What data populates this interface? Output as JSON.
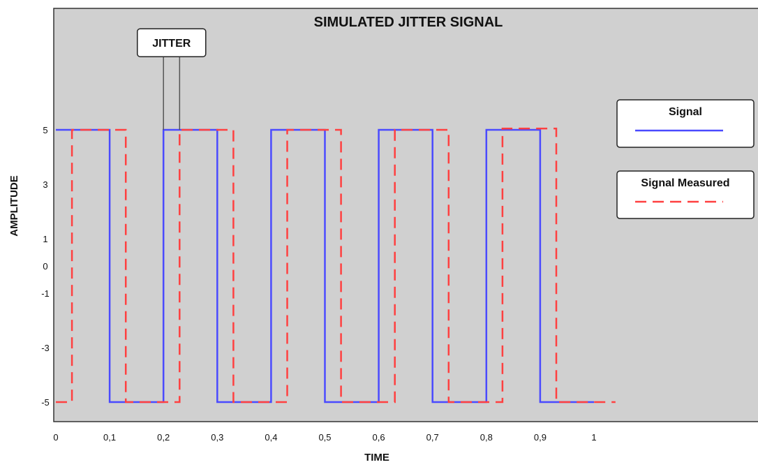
{
  "chart_data": {
    "type": "line",
    "title": "SIMULATED JITTER SIGNAL",
    "xlabel": "TIME",
    "ylabel": "AMPLITUDE",
    "xlim": [
      0,
      1.3
    ],
    "ylim": [
      -5.7,
      9.5
    ],
    "x_ticks": [
      0,
      0.1,
      0.2,
      0.3,
      0.4,
      0.5,
      0.6,
      0.7,
      0.8,
      0.9,
      1
    ],
    "x_tick_labels": [
      "0",
      "0,1",
      "0,2",
      "0,3",
      "0,4",
      "0,5",
      "0,6",
      "0,7",
      "0,8",
      "0,9",
      "1"
    ],
    "y_ticks": [
      5,
      3,
      1,
      0,
      -1,
      -3,
      -5
    ],
    "y_tick_labels": [
      "5",
      "3",
      "1",
      "0",
      "-1",
      "-3",
      "-5"
    ],
    "grid": false,
    "background": "#d0d0d0",
    "legend_position": "right",
    "series": [
      {
        "name": "Signal",
        "color": "#4a4aff",
        "line_style": "solid",
        "x": [
          0,
          0.1,
          0.1,
          0.2,
          0.2,
          0.3,
          0.3,
          0.4,
          0.4,
          0.5,
          0.5,
          0.6,
          0.6,
          0.7,
          0.7,
          0.8,
          0.8,
          0.9,
          0.9,
          1.0
        ],
        "y": [
          5,
          5,
          -5,
          -5,
          5,
          5,
          -5,
          -5,
          5,
          5,
          -5,
          -5,
          5,
          5,
          -5,
          -5,
          5,
          5,
          -5,
          -5
        ]
      },
      {
        "name": "Signal Measured",
        "color": "#ff4040",
        "line_style": "dashed",
        "x": [
          0,
          0.03,
          0.03,
          0.13,
          0.13,
          0.23,
          0.23,
          0.33,
          0.33,
          0.43,
          0.43,
          0.53,
          0.53,
          0.63,
          0.63,
          0.73,
          0.73,
          0.83,
          0.83,
          0.93,
          0.93,
          1.04
        ],
        "y": [
          -5,
          -5,
          5,
          5,
          -5,
          -5,
          5,
          5,
          -5,
          -5,
          5,
          5,
          -5,
          -5,
          5,
          5,
          -5,
          -5,
          5.05,
          5.05,
          -5,
          -5
        ]
      }
    ],
    "annotations": [
      {
        "text": "JITTER",
        "x": 0.215,
        "y": 8.2,
        "pointer_x": [
          0.2,
          0.23
        ],
        "pointer_y": 5
      }
    ]
  }
}
